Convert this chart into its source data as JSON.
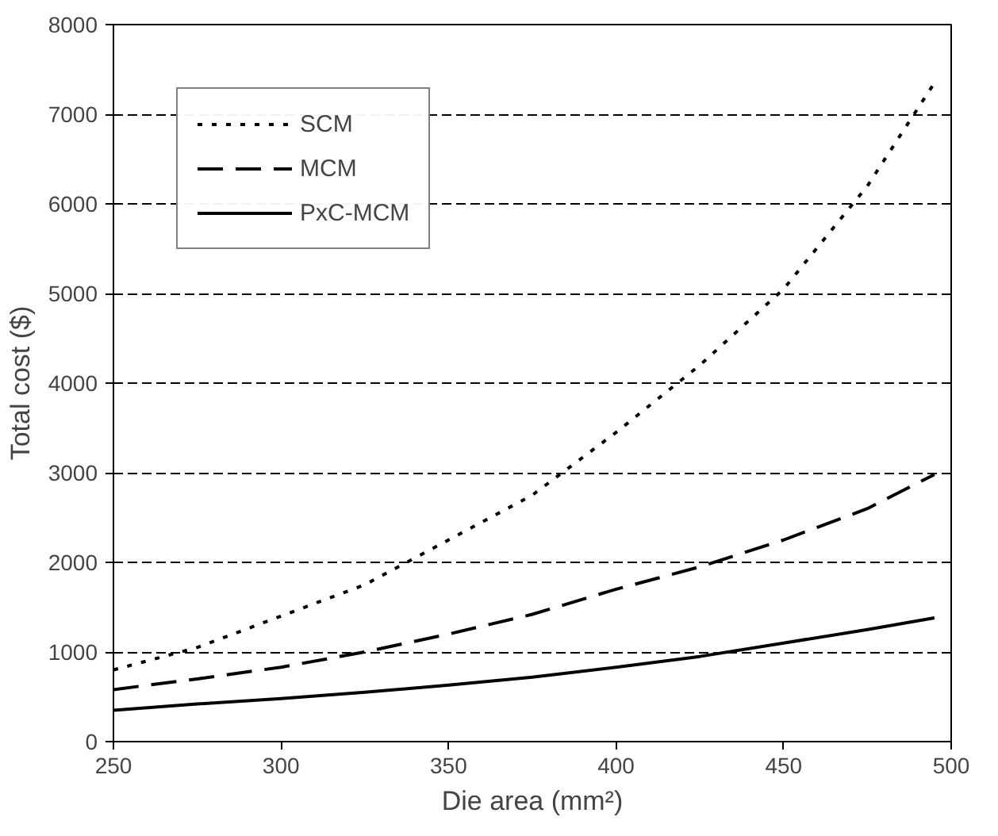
{
  "chart_data": {
    "type": "line",
    "xlabel": "Die area (mm²)",
    "ylabel": "Total cost ($)",
    "x": [
      250,
      275,
      300,
      325,
      350,
      375,
      400,
      425,
      450,
      475,
      495
    ],
    "series": [
      {
        "name": "SCM",
        "color": "#000000",
        "line_style": "dotted",
        "values": [
          800,
          1050,
          1400,
          1750,
          2250,
          2750,
          3450,
          4200,
          5050,
          6200,
          7350
        ]
      },
      {
        "name": "MCM",
        "color": "#000000",
        "line_style": "dashed",
        "values": [
          580,
          700,
          830,
          1000,
          1200,
          1420,
          1700,
          1950,
          2250,
          2600,
          2980
        ]
      },
      {
        "name": "PxC-MCM",
        "color": "#000000",
        "line_style": "solid",
        "values": [
          350,
          420,
          480,
          550,
          630,
          720,
          830,
          950,
          1100,
          1250,
          1380
        ]
      }
    ],
    "xlim": [
      250,
      500
    ],
    "xticks": [
      250,
      300,
      350,
      400,
      450,
      500
    ],
    "ylim": [
      0,
      8000
    ],
    "yticks": [
      0,
      1000,
      2000,
      3000,
      4000,
      5000,
      6000,
      7000,
      8000
    ],
    "grid": "y",
    "legend": "top left",
    "marker": "none"
  }
}
